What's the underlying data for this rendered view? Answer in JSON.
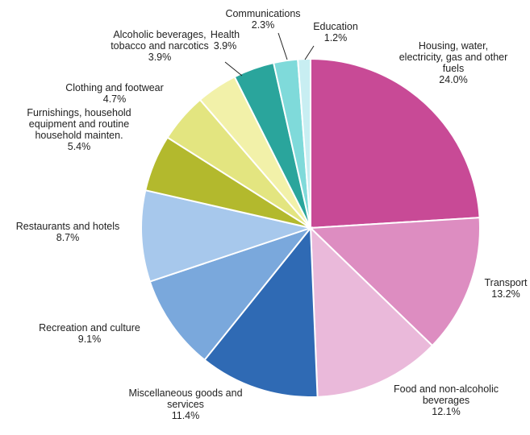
{
  "chart_data": {
    "type": "pie",
    "start_angle_deg": 0,
    "direction": "clockwise",
    "slices": [
      {
        "name": "Housing, water, electricity, gas and other fuels",
        "label_lines": [
          "Housing, water,",
          "electricity, gas and other",
          "fuels"
        ],
        "value": 24.0,
        "value_label": "24.0%",
        "color": "#c84a96"
      },
      {
        "name": "Transport",
        "label_lines": [
          "Transport"
        ],
        "value": 13.2,
        "value_label": "13.2%",
        "color": "#dd8dc1"
      },
      {
        "name": "Food and non-alcoholic beverages",
        "label_lines": [
          "Food and non-alcoholic",
          "beverages"
        ],
        "value": 12.1,
        "value_label": "12.1%",
        "color": "#eab9da"
      },
      {
        "name": "Miscellaneous goods and services",
        "label_lines": [
          "Miscellaneous goods and",
          "services"
        ],
        "value": 11.4,
        "value_label": "11.4%",
        "color": "#2f6ab4"
      },
      {
        "name": "Recreation and culture",
        "label_lines": [
          "Recreation and culture"
        ],
        "value": 9.1,
        "value_label": "9.1%",
        "color": "#7aa8dc"
      },
      {
        "name": "Restaurants and hotels",
        "label_lines": [
          "Restaurants and hotels"
        ],
        "value": 8.7,
        "value_label": "8.7%",
        "color": "#a7c8ec"
      },
      {
        "name": "Furnishings, household equipment and routine household mainten.",
        "label_lines": [
          "Furnishings, household",
          "equipment and routine",
          "household mainten."
        ],
        "value": 5.4,
        "value_label": "5.4%",
        "color": "#b3b92d"
      },
      {
        "name": "Clothing and footwear",
        "label_lines": [
          "Clothing and footwear"
        ],
        "value": 4.7,
        "value_label": "4.7%",
        "color": "#e3e580"
      },
      {
        "name": "Alcoholic beverages, tobacco and narcotics",
        "label_lines": [
          "Alcoholic beverages,",
          "tobacco and narcotics"
        ],
        "value": 3.9,
        "value_label": "3.9%",
        "color": "#f2f1a9"
      },
      {
        "name": "Health",
        "label_lines": [
          "Health"
        ],
        "value": 3.9,
        "value_label": "3.9%",
        "color": "#2aa59c"
      },
      {
        "name": "Communications",
        "label_lines": [
          "Communications"
        ],
        "value": 2.3,
        "value_label": "2.3%",
        "color": "#7fdada"
      },
      {
        "name": "Education",
        "label_lines": [
          "Education"
        ],
        "value": 1.2,
        "value_label": "1.2%",
        "color": "#c8eef2"
      }
    ]
  }
}
